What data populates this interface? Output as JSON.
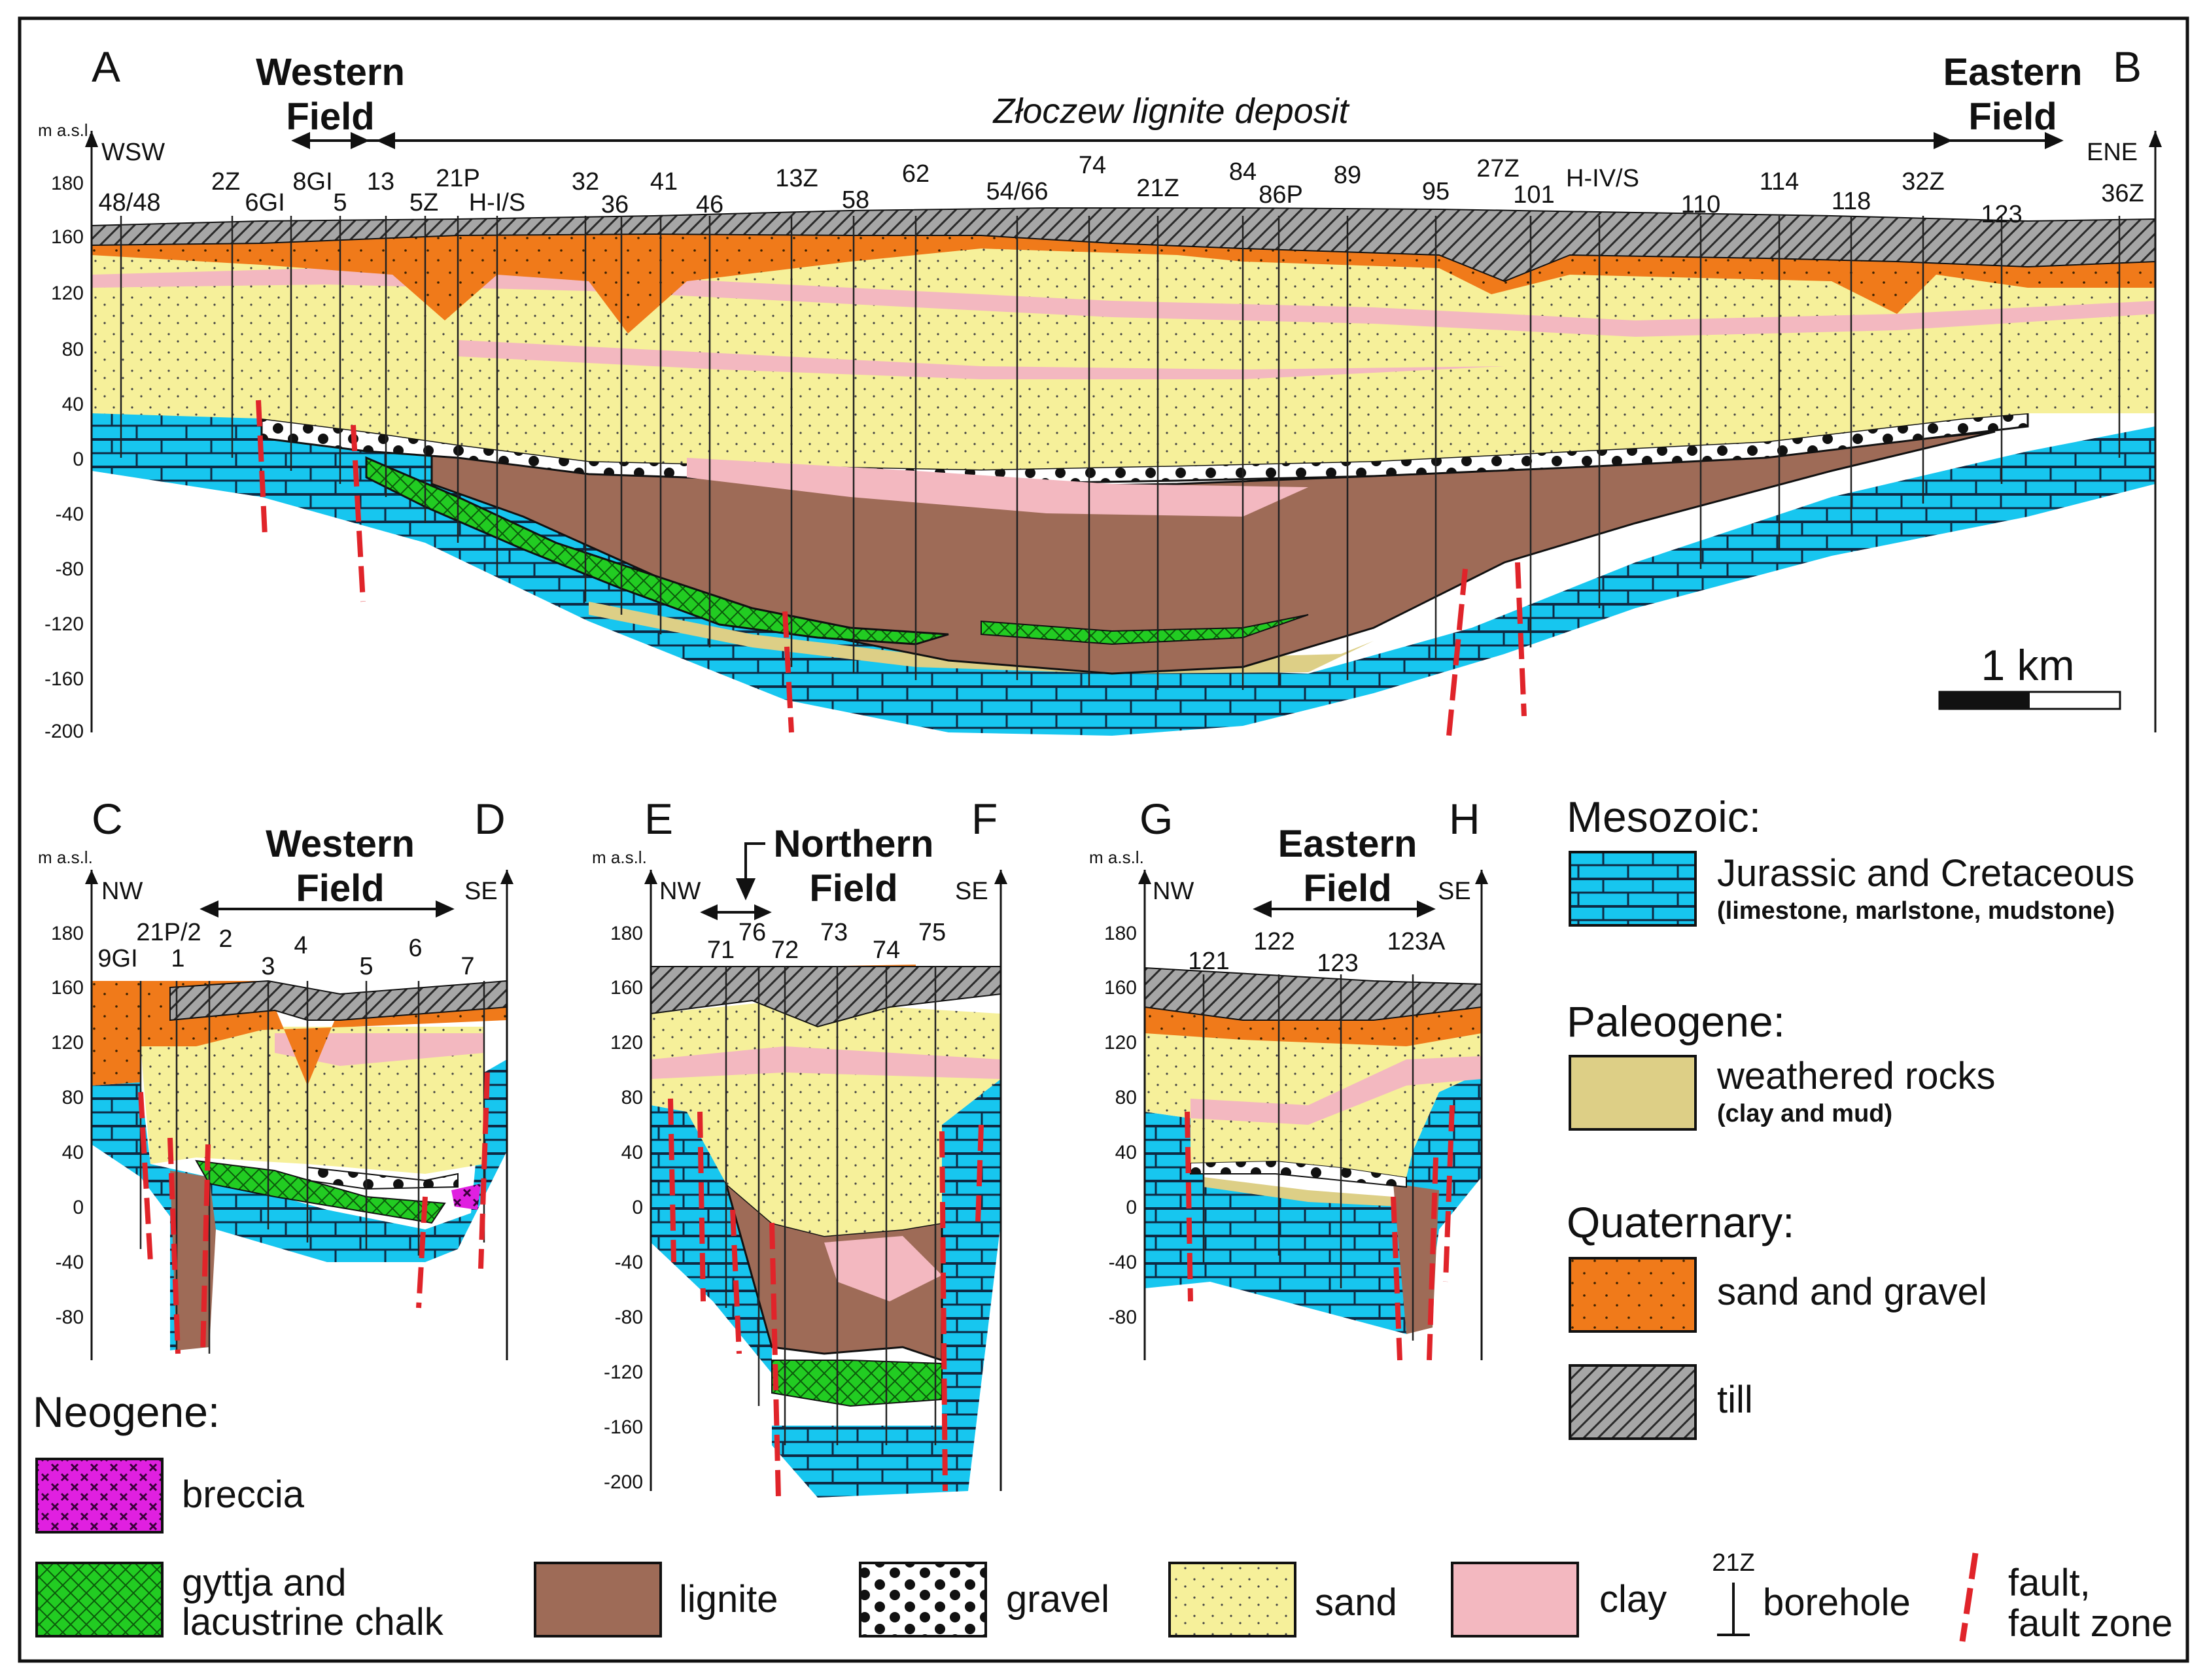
{
  "section_ab": {
    "left_letter": "A",
    "right_letter": "B",
    "title": "Złoczew lignite deposit",
    "western_field": [
      "Western",
      "Field"
    ],
    "eastern_field": [
      "Eastern",
      "Field"
    ],
    "left_dir": "WSW",
    "right_dir": "ENE",
    "unit": "m a.s.l.",
    "y_ticks": [
      "180",
      "160",
      "120",
      "80",
      "40",
      "0",
      "-40",
      "-80",
      "-120",
      "-160",
      "-200"
    ],
    "scale_label": "1 km",
    "boreholes": [
      "48/48",
      "2Z",
      "6GI",
      "8GI",
      "5",
      "13",
      "5Z",
      "21P",
      "H-I/S",
      "32",
      "36",
      "41",
      "46",
      "13Z",
      "58",
      "62",
      "54/66",
      "74",
      "21Z",
      "84",
      "86P",
      "89",
      "95",
      "27Z",
      "101",
      "H-IV/S",
      "110",
      "114",
      "118",
      "32Z",
      "123",
      "36Z"
    ]
  },
  "section_cd": {
    "left_letter": "C",
    "right_letter": "D",
    "field": [
      "Western",
      "Field"
    ],
    "left_dir": "NW",
    "right_dir": "SE",
    "unit": "m a.s.l.",
    "y_ticks": [
      "180",
      "160",
      "120",
      "80",
      "40",
      "0",
      "-40",
      "-80"
    ],
    "boreholes": [
      "9GI",
      "21P/2",
      "1",
      "2",
      "3",
      "4",
      "5",
      "6",
      "7"
    ]
  },
  "section_ef": {
    "left_letter": "E",
    "right_letter": "F",
    "field": [
      "Northern",
      "Field"
    ],
    "left_dir": "NW",
    "right_dir": "SE",
    "unit": "m a.s.l.",
    "y_ticks": [
      "180",
      "160",
      "120",
      "80",
      "40",
      "0",
      "-40",
      "-80",
      "-120",
      "-160",
      "-200"
    ],
    "boreholes": [
      "71",
      "76",
      "72",
      "73",
      "74",
      "75"
    ]
  },
  "section_gh": {
    "left_letter": "G",
    "right_letter": "H",
    "field": [
      "Eastern",
      "Field"
    ],
    "left_dir": "NW",
    "right_dir": "SE",
    "unit": "m a.s.l.",
    "y_ticks": [
      "180",
      "160",
      "120",
      "80",
      "40",
      "0",
      "-40",
      "-80"
    ],
    "boreholes": [
      "121",
      "122",
      "123",
      "123A"
    ]
  },
  "legend": {
    "mesozoic_heading": "Mesozoic:",
    "jurassic": "Jurassic and Cretaceous",
    "jurassic_note": "(limestone, marlstone, mudstone)",
    "paleogene_heading": "Paleogene:",
    "weathered": "weathered rocks",
    "weathered_note": "(clay and mud)",
    "quaternary_heading": "Quaternary:",
    "sand_gravel": "sand and gravel",
    "till": "till",
    "neogene_heading": "Neogene:",
    "breccia": "breccia",
    "gyttja": [
      "gyttja and",
      "lacustrine chalk"
    ],
    "lignite": "lignite",
    "gravel": "gravel",
    "sand": "sand",
    "clay": "clay",
    "borehole_code": "21Z",
    "borehole": "borehole",
    "fault": [
      "fault,",
      "fault zone"
    ]
  },
  "colors": {
    "limestone": "#17c6ef",
    "lignite": "#9e6b57",
    "gyttja": "#22cc22",
    "sand": "#f6f09a",
    "clay": "#f3b8c0",
    "quat_sand_gravel": "#f07a1a",
    "till": "#a6a6a6",
    "weathered": "#ddcf86",
    "breccia": "#e020e0",
    "fault": "#e0242a"
  }
}
